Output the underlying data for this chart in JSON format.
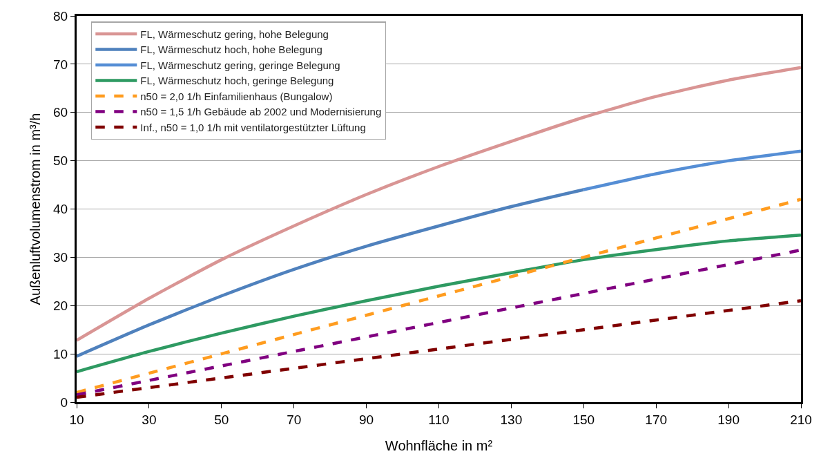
{
  "chart_data": {
    "type": "line",
    "xlabel": "Wohnfläche in m²",
    "ylabel": "Außenluftvolumenstrom in m³/h",
    "x": [
      10,
      30,
      50,
      70,
      90,
      110,
      130,
      150,
      170,
      190,
      210
    ],
    "series": [
      {
        "name": "FL, Wärmeschutz gering, hohe Belegung",
        "color": "#d99594",
        "line_style": "solid",
        "values": [
          12.8,
          21.5,
          29.5,
          36.5,
          43,
          48.8,
          54,
          59,
          63.3,
          66.7,
          69.3
        ]
      },
      {
        "name": "FL, Wärmeschutz hoch, hohe Belegung",
        "color": "#4f81bd",
        "line_style": "solid",
        "values": [
          9.5,
          16,
          22,
          27.5,
          32.3,
          36.5,
          40.5,
          44,
          null,
          null,
          null
        ]
      },
      {
        "name": "FL, Wärmeschutz gering, geringe Belegung",
        "color": "#558ed5",
        "line_style": "solid",
        "values": [
          null,
          null,
          null,
          null,
          null,
          null,
          null,
          44,
          47.3,
          50,
          52
        ]
      },
      {
        "name": "FL, Wärmeschutz hoch, geringe Belegung",
        "color": "#2e9a62",
        "line_style": "solid",
        "values": [
          6.3,
          10.5,
          14.3,
          17.8,
          21,
          24,
          26.8,
          29.5,
          31.6,
          33.4,
          34.6
        ]
      },
      {
        "name": "n50 = 2,0 1/h Einfamilienhaus (Bungalow)",
        "color": "#ff9c1f",
        "line_style": "dashed",
        "values": [
          2,
          6,
          10,
          14,
          18,
          22,
          26,
          30,
          34,
          38,
          42
        ]
      },
      {
        "name": "n50 = 1,5 1/h Gebäude ab 2002 und Modernisierung",
        "color": "#800080",
        "line_style": "dashed",
        "values": [
          1.5,
          4.5,
          7.5,
          10.5,
          13.5,
          16.5,
          19.5,
          22.5,
          25.5,
          28.5,
          31.5
        ]
      },
      {
        "name": "Inf., n50 = 1,0 1/h mit ventilatorgestützter Lüftung",
        "color": "#800000",
        "line_style": "dashed",
        "values": [
          1,
          3,
          5,
          7,
          9,
          11,
          13,
          15,
          17,
          19,
          21
        ]
      }
    ],
    "xlim": [
      10,
      210
    ],
    "xticks": [
      10,
      30,
      50,
      70,
      90,
      110,
      130,
      150,
      170,
      190,
      210
    ],
    "ylim": [
      0,
      80
    ],
    "yticks": [
      0,
      10,
      20,
      30,
      40,
      50,
      60,
      70,
      80
    ],
    "grid": "y",
    "legend": "top left",
    "marker": "none"
  }
}
